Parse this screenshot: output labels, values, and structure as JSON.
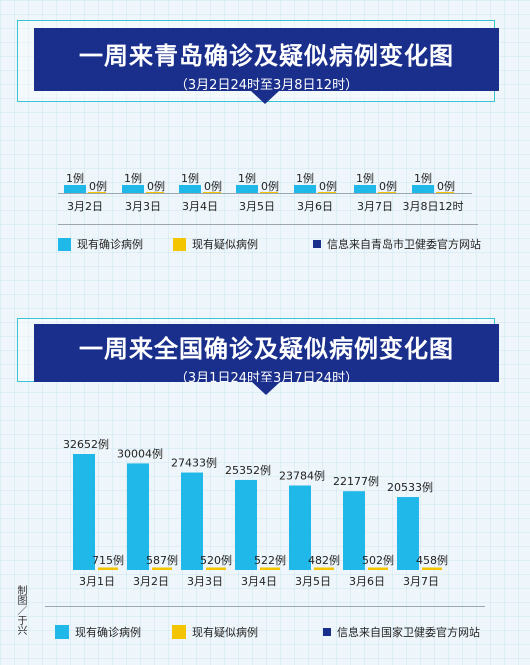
{
  "top": {
    "title": "一周来青岛确诊及疑似病例变化图",
    "subtitle": "（3月2日24时至3月8日12时）",
    "legend": {
      "confirmed": "现有确诊病例",
      "suspected": "现有疑似病例",
      "source": "信息来自青岛市卫健委官方网站"
    }
  },
  "bottom": {
    "title": "一周来全国确诊及疑似病例变化图",
    "subtitle": "（3月1日24时至3月7日24时）",
    "legend": {
      "confirmed": "现有确诊病例",
      "suspected": "现有疑似病例",
      "source": "信息来自国家卫健委官方网站"
    }
  },
  "credit": "制图／于兴",
  "colors": {
    "confirmed": "#1fb8e8",
    "suspected": "#f3c400",
    "banner": "#1a2f8c",
    "source_marker": "#1a2f8c"
  },
  "chart_data": [
    {
      "type": "bar",
      "categories": [
        "3月2日",
        "3月3日",
        "3月4日",
        "3月5日",
        "3月6日",
        "3月7日",
        "3月8日12时"
      ],
      "series": [
        {
          "name": "现有确诊病例",
          "values": [
            1,
            1,
            1,
            1,
            1,
            1,
            1
          ],
          "labels": [
            "1例",
            "1例",
            "1例",
            "1例",
            "1例",
            "1例",
            "1例"
          ]
        },
        {
          "name": "现有疑似病例",
          "values": [
            0,
            0,
            0,
            0,
            0,
            0,
            0
          ],
          "labels": [
            "0例",
            "0例",
            "0例",
            "0例",
            "0例",
            "0例",
            "0例"
          ]
        }
      ]
    },
    {
      "type": "bar",
      "categories": [
        "3月1日",
        "3月2日",
        "3月3日",
        "3月4日",
        "3月5日",
        "3月6日",
        "3月7日"
      ],
      "series": [
        {
          "name": "现有确诊病例",
          "values": [
            32652,
            30004,
            27433,
            25352,
            23784,
            22177,
            20533
          ],
          "labels": [
            "32652例",
            "30004例",
            "27433例",
            "25352例",
            "23784例",
            "22177例",
            "20533例"
          ]
        },
        {
          "name": "现有疑似病例",
          "values": [
            715,
            587,
            520,
            522,
            482,
            502,
            458
          ],
          "labels": [
            "715例",
            "587例",
            "520例",
            "522例",
            "482例",
            "502例",
            "458例"
          ]
        }
      ]
    }
  ]
}
